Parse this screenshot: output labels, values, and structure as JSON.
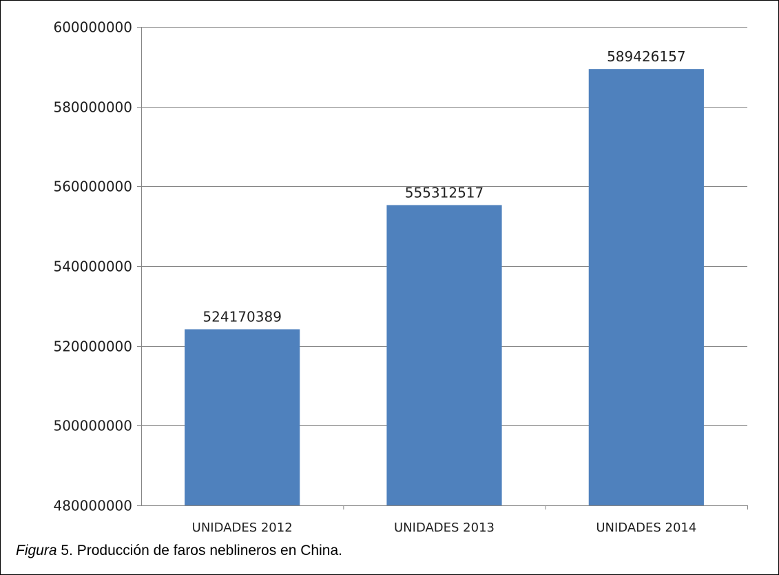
{
  "chart_data": {
    "type": "bar",
    "categories": [
      "UNIDADES 2012",
      "UNIDADES 2013",
      "UNIDADES 2014"
    ],
    "values": [
      524170389,
      555312517,
      589426157
    ],
    "data_labels": [
      "524170389",
      "555312517",
      "589426157"
    ],
    "ylim": [
      480000000,
      600000000
    ],
    "yticks": [
      480000000,
      500000000,
      520000000,
      540000000,
      560000000,
      580000000,
      600000000
    ],
    "ytick_labels": [
      "480000000",
      "500000000",
      "520000000",
      "540000000",
      "560000000",
      "580000000",
      "600000000"
    ],
    "grid": true,
    "bar_color": "#4f81bd",
    "grid_color": "#868686"
  },
  "caption": {
    "figure_word": "Figura",
    "figure_number": " 5",
    "text": ".  Producción de faros neblineros en China."
  }
}
